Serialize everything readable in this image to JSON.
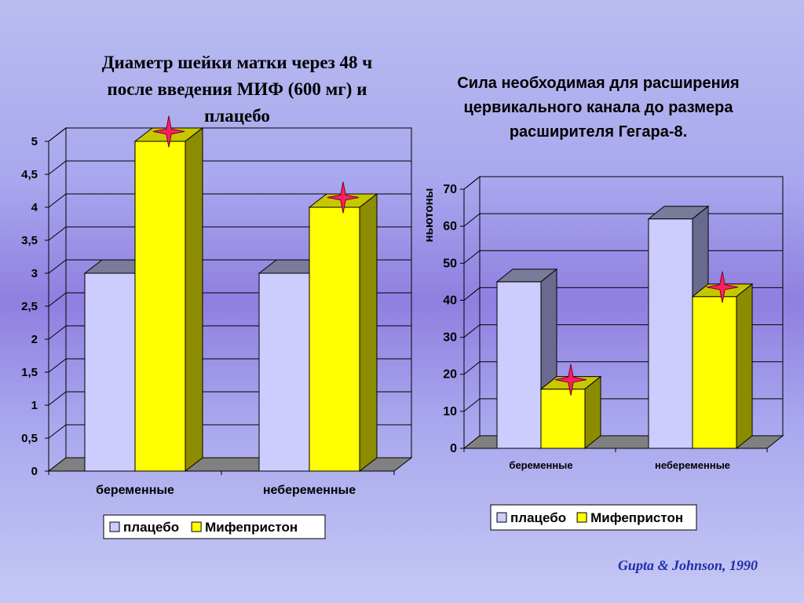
{
  "colors": {
    "placebo": "#ccccff",
    "mifepristone": "#ffff00",
    "marker": "#ff2060",
    "floor": "#808080",
    "citation": "#1f2ea8"
  },
  "citation": "Gupta & Johnson, 1990",
  "chart_data": [
    {
      "type": "bar",
      "title_lines": [
        "Диаметр шейки матки через 48 ч",
        "после введения МИФ (600 мг) и",
        "плацебо"
      ],
      "categories": [
        "беременные",
        "небеременные"
      ],
      "series": [
        {
          "name": "плацебо",
          "values": [
            3,
            3
          ]
        },
        {
          "name": "Мифепристон",
          "values": [
            5,
            4
          ]
        }
      ],
      "ylim": [
        0,
        5
      ],
      "yticks": [
        "0",
        "0,5",
        "1",
        "1,5",
        "2",
        "2,5",
        "3",
        "3,5",
        "4",
        "4,5",
        "5"
      ],
      "ylabel": "",
      "grid": true,
      "legend": "bottom",
      "significance_marked_series": "Мифепристон"
    },
    {
      "type": "bar",
      "title_lines": [
        "Сила необходимая для расширения",
        "цервикального канала до размера",
        "расширителя Гегара-8."
      ],
      "categories": [
        "беременные",
        "небеременные"
      ],
      "series": [
        {
          "name": "плацебо",
          "values": [
            45,
            62
          ]
        },
        {
          "name": "Мифепристон",
          "values": [
            16,
            41
          ]
        }
      ],
      "ylim": [
        0,
        70
      ],
      "yticks": [
        "0",
        "10",
        "20",
        "30",
        "40",
        "50",
        "60",
        "70"
      ],
      "ylabel": "ньютоны",
      "grid": true,
      "legend": "bottom",
      "significance_marked_series": "Мифепристон"
    }
  ]
}
